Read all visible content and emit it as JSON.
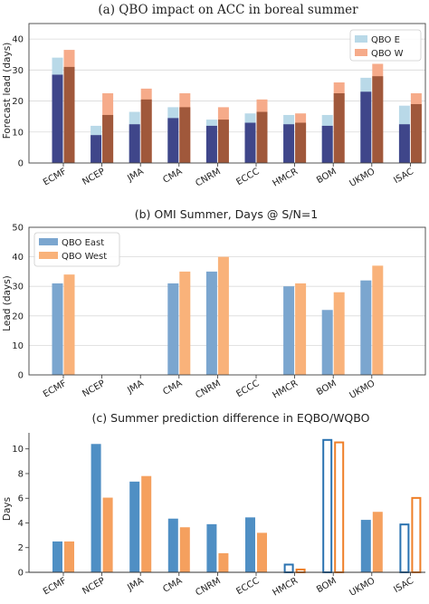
{
  "chart_data": [
    {
      "type": "bar",
      "title": "(a) QBO impact on ACC in boreal summer",
      "ylabel": "Forecast lead (days)",
      "ylim": [
        0,
        45
      ],
      "yticks": [
        0,
        10,
        20,
        30,
        40
      ],
      "grid": true,
      "legend_position": "top-right",
      "categories": [
        "ECMF",
        "NCEP",
        "JMA",
        "CMA",
        "CNRM",
        "ECCC",
        "HMCR",
        "BOM",
        "UKMO",
        "ISAC"
      ],
      "series": [
        {
          "name": "QBO E",
          "values": [
            34,
            12,
            16.5,
            18,
            14,
            16,
            15.5,
            15.5,
            27.5,
            18.5
          ],
          "inner_values": [
            28.5,
            9,
            12.5,
            14.5,
            12,
            13,
            12.5,
            12,
            23,
            12.5
          ],
          "color": "#b9d9e8",
          "inner_color": "#3f468a"
        },
        {
          "name": "QBO W",
          "values": [
            36.5,
            22.5,
            24,
            22.5,
            18,
            20.5,
            16,
            26,
            32,
            22.5
          ],
          "inner_values": [
            31,
            15.5,
            20.5,
            18,
            14,
            16.5,
            13,
            22.5,
            28,
            19
          ],
          "color": "#f6ab8a",
          "inner_color": "#a0583b"
        }
      ]
    },
    {
      "type": "bar",
      "title": "(b) OMI Summer, Days @ S/N=1",
      "ylabel": "Lead (days)",
      "ylim": [
        0,
        50
      ],
      "yticks": [
        0,
        10,
        20,
        30,
        40,
        50
      ],
      "grid": true,
      "legend_position": "top-left",
      "categories": [
        "ECMF",
        "NCEP",
        "JMA",
        "CMA",
        "CNRM",
        "ECCC",
        "HMCR",
        "BOM",
        "UKMO"
      ],
      "series": [
        {
          "name": "QBO East",
          "values": [
            31,
            null,
            null,
            31,
            35,
            null,
            30,
            22,
            32
          ],
          "color": "#7ba6cf"
        },
        {
          "name": "QBO West",
          "values": [
            34,
            null,
            null,
            35,
            40,
            null,
            31,
            28,
            37
          ],
          "color": "#f9b27a"
        }
      ]
    },
    {
      "type": "bar",
      "title": "(c) Summer prediction difference in EQBO/WQBO",
      "ylabel": "Days",
      "ylim": [
        0,
        11.3
      ],
      "yticks": [
        0,
        2,
        4,
        6,
        8,
        10
      ],
      "grid": false,
      "categories": [
        "ECMF",
        "NCEP",
        "JMA",
        "CMA",
        "CNRM",
        "ECCC",
        "HMCR",
        "BOM",
        "UKMO",
        "ISAC"
      ],
      "hollow_categories": [
        "HMCR",
        "BOM",
        "ISAC"
      ],
      "series": [
        {
          "values": [
            2.5,
            10.4,
            7.35,
            4.35,
            3.9,
            4.45,
            0.7,
            10.8,
            4.25,
            3.95
          ],
          "color": "#4f8fc4",
          "edge_color": "#2a72b0"
        },
        {
          "values": [
            2.5,
            6.05,
            7.8,
            3.65,
            1.55,
            3.2,
            0.3,
            10.6,
            4.9,
            6.1
          ],
          "color": "#f5a05e",
          "edge_color": "#ef7f28"
        }
      ]
    }
  ]
}
